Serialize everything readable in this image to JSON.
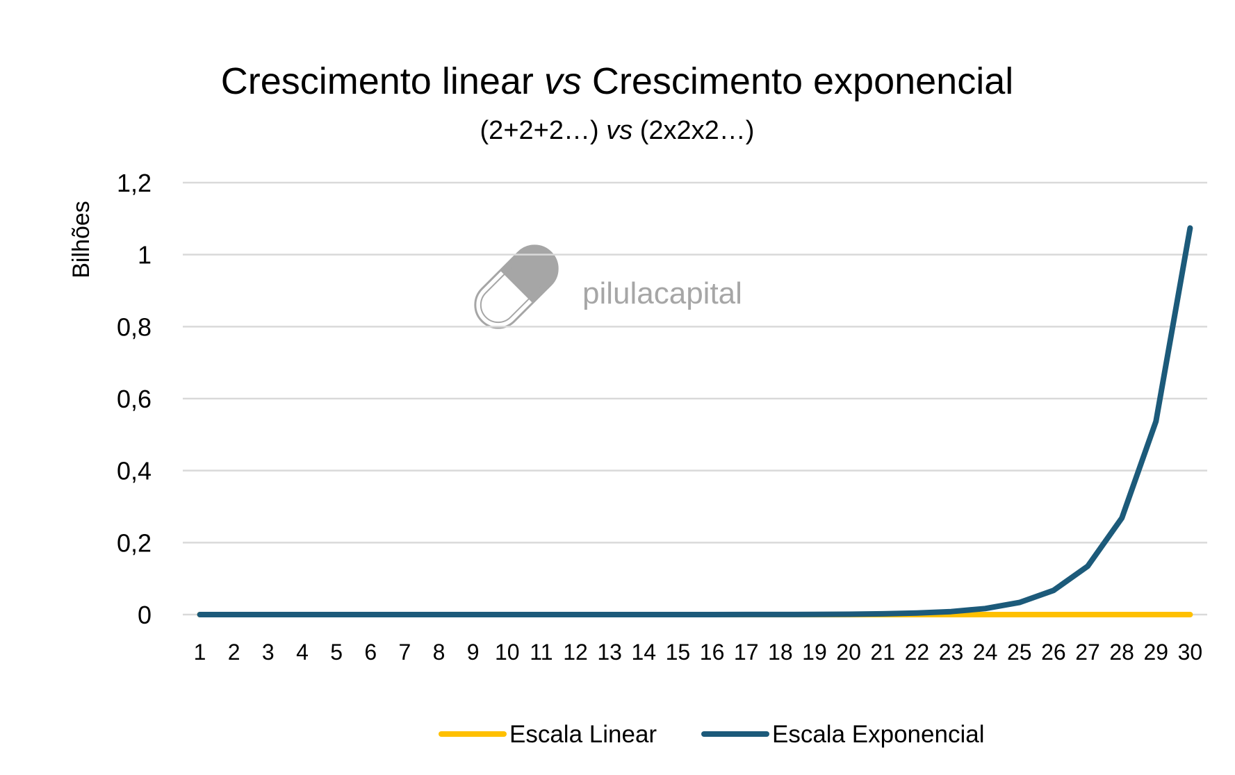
{
  "watermark": {
    "text": "pilulacapital",
    "icon": "capsule-icon",
    "color": "#a6a6a6"
  },
  "chart_data": {
    "type": "line",
    "title": {
      "before": "Crescimento linear ",
      "italic": "vs",
      "after": " Crescimento exponencial"
    },
    "subtitle": {
      "before": "(2+2+2…) ",
      "italic": "vs",
      "after": " (2x2x2…)"
    },
    "xlabel": "",
    "ylabel": "Bilhões",
    "categories": [
      "1",
      "2",
      "3",
      "4",
      "5",
      "6",
      "7",
      "8",
      "9",
      "10",
      "11",
      "12",
      "13",
      "14",
      "15",
      "16",
      "17",
      "18",
      "19",
      "20",
      "21",
      "22",
      "23",
      "24",
      "25",
      "26",
      "27",
      "28",
      "29",
      "30"
    ],
    "y_ticks": [
      "0",
      "0,2",
      "0,4",
      "0,6",
      "0,8",
      "1",
      "1,2"
    ],
    "ylim": [
      0,
      1.2
    ],
    "grid": true,
    "legend_position": "bottom",
    "series": [
      {
        "name": "Escala Linear",
        "color": "#ffc000",
        "values": [
          2e-09,
          4e-09,
          6e-09,
          8e-09,
          1e-08,
          1.2e-08,
          1.4e-08,
          1.6e-08,
          1.8e-08,
          2e-08,
          2.2e-08,
          2.4e-08,
          2.6e-08,
          2.8e-08,
          3e-08,
          3.2e-08,
          3.4e-08,
          3.6e-08,
          3.8e-08,
          4e-08,
          4.2e-08,
          4.4e-08,
          4.6e-08,
          4.8e-08,
          5e-08,
          5.2e-08,
          5.4e-08,
          5.6e-08,
          5.8e-08,
          6e-08
        ]
      },
      {
        "name": "Escala Exponencial",
        "color": "#1c5a7a",
        "values": [
          2e-09,
          4e-09,
          8e-09,
          1.6e-08,
          3.2e-08,
          6.4e-08,
          1.28e-07,
          2.56e-07,
          5.12e-07,
          1.024e-06,
          2.048e-06,
          4.096e-06,
          8.192e-06,
          1.6384e-05,
          3.2768e-05,
          6.5536e-05,
          0.000131072,
          0.000262144,
          0.000524288,
          0.001048576,
          0.002097152,
          0.004194304,
          0.008388608,
          0.016777216,
          0.033554432,
          0.067108864,
          0.134217728,
          0.268435456,
          0.536870912,
          1.073741824
        ]
      }
    ]
  }
}
